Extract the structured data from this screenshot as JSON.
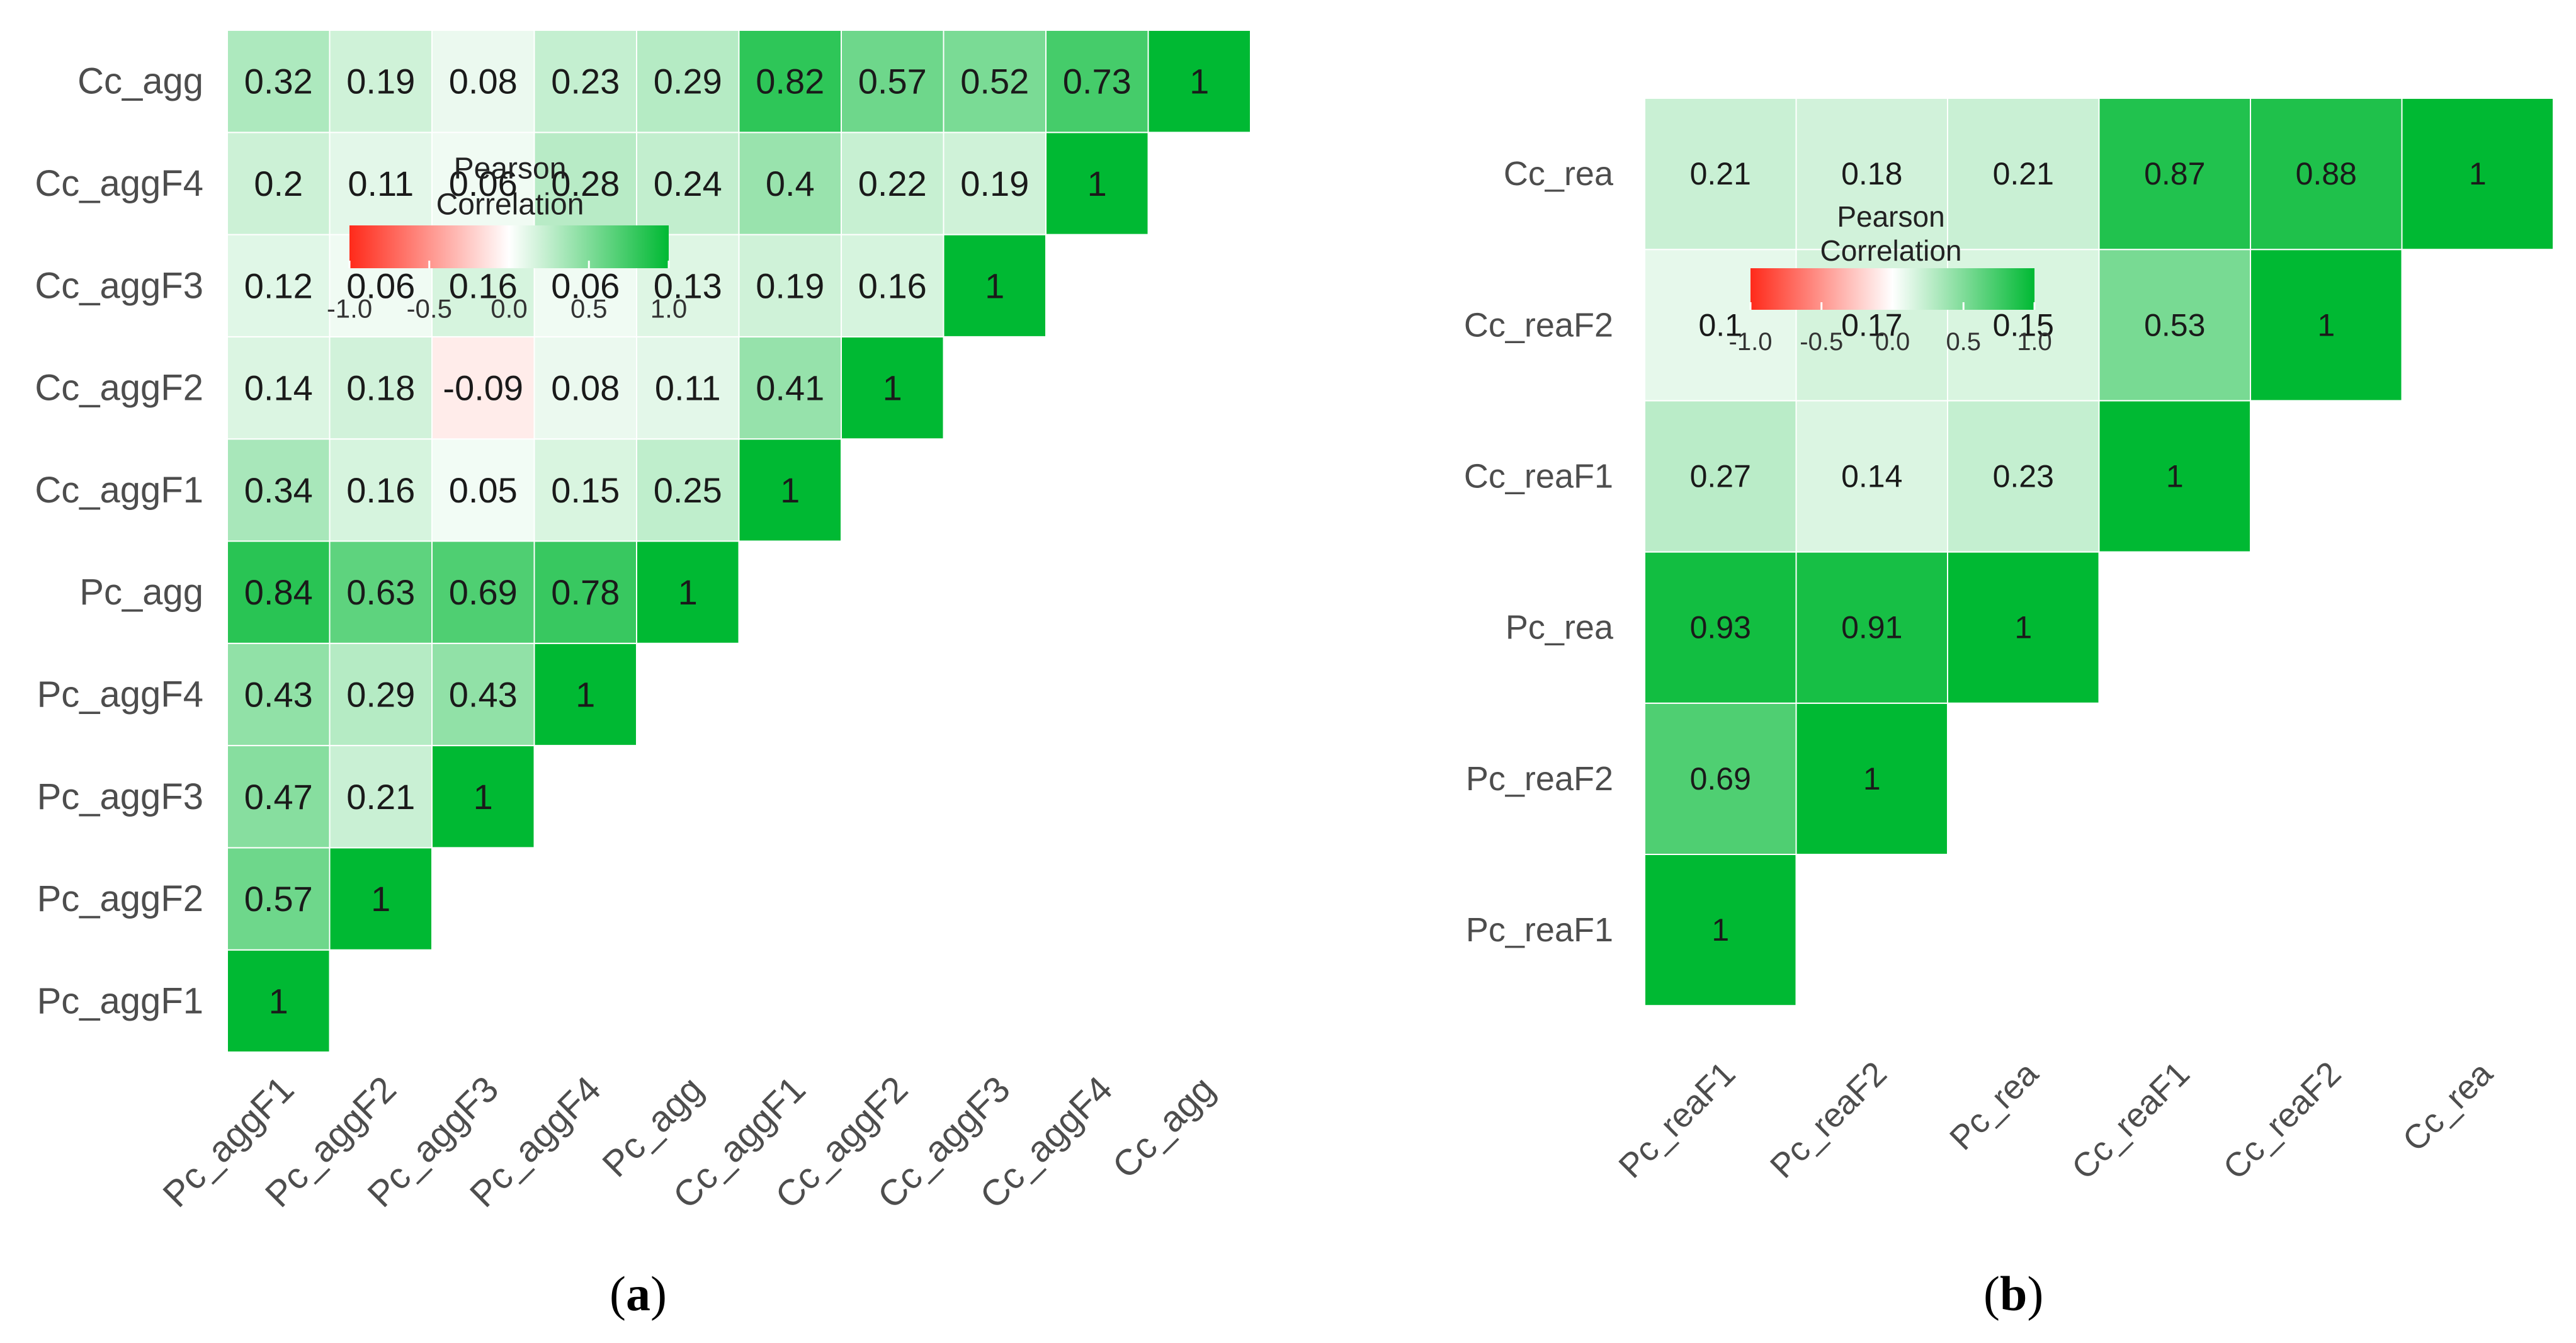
{
  "chart_data": [
    {
      "type": "heatmap",
      "panel": "a",
      "caption_pre": "(",
      "caption_letter": "a",
      "caption_post": ")",
      "legend": {
        "title_line1": "Pearson",
        "title_line2": "Correlation",
        "ticks": [
          "-1.0",
          "-0.5",
          "0.0",
          "0.5",
          "1.0"
        ],
        "range": [
          -1,
          1
        ]
      },
      "colors": {
        "neg": "#ff2a1a",
        "mid": "#ffffff",
        "pos": "#00b933"
      },
      "variables": [
        "Pc_aggF1",
        "Pc_aggF2",
        "Pc_aggF3",
        "Pc_aggF4",
        "Pc_agg",
        "Cc_aggF1",
        "Cc_aggF2",
        "Cc_aggF3",
        "Cc_aggF4",
        "Cc_agg"
      ],
      "matrix": [
        [
          1
        ],
        [
          0.57,
          1
        ],
        [
          0.47,
          0.21,
          1
        ],
        [
          0.43,
          0.29,
          0.43,
          1
        ],
        [
          0.84,
          0.63,
          0.69,
          0.78,
          1
        ],
        [
          0.34,
          0.16,
          0.05,
          0.15,
          0.25,
          1
        ],
        [
          0.14,
          0.18,
          -0.09,
          0.08,
          0.11,
          0.41,
          1
        ],
        [
          0.12,
          0.06,
          0.16,
          0.06,
          0.13,
          0.19,
          0.16,
          1
        ],
        [
          0.2,
          0.11,
          0.06,
          0.28,
          0.24,
          0.4,
          0.22,
          0.19,
          1
        ],
        [
          0.32,
          0.19,
          0.08,
          0.23,
          0.29,
          0.82,
          0.57,
          0.52,
          0.73,
          1
        ]
      ]
    },
    {
      "type": "heatmap",
      "panel": "b",
      "caption_pre": "(",
      "caption_letter": "b",
      "caption_post": ")",
      "legend": {
        "title_line1": "Pearson",
        "title_line2": "Correlation",
        "ticks": [
          "-1.0",
          "-0.5",
          "0.0",
          "0.5",
          "1.0"
        ],
        "range": [
          -1,
          1
        ]
      },
      "colors": {
        "neg": "#ff2a1a",
        "mid": "#ffffff",
        "pos": "#00b933"
      },
      "variables": [
        "Pc_reaF1",
        "Pc_reaF2",
        "Pc_rea",
        "Cc_reaF1",
        "Cc_reaF2",
        "Cc_rea"
      ],
      "matrix": [
        [
          1
        ],
        [
          0.69,
          1
        ],
        [
          0.93,
          0.91,
          1
        ],
        [
          0.27,
          0.14,
          0.23,
          1
        ],
        [
          0.1,
          0.17,
          0.15,
          0.53,
          1
        ],
        [
          0.21,
          0.18,
          0.21,
          0.87,
          0.88,
          1
        ]
      ]
    }
  ]
}
